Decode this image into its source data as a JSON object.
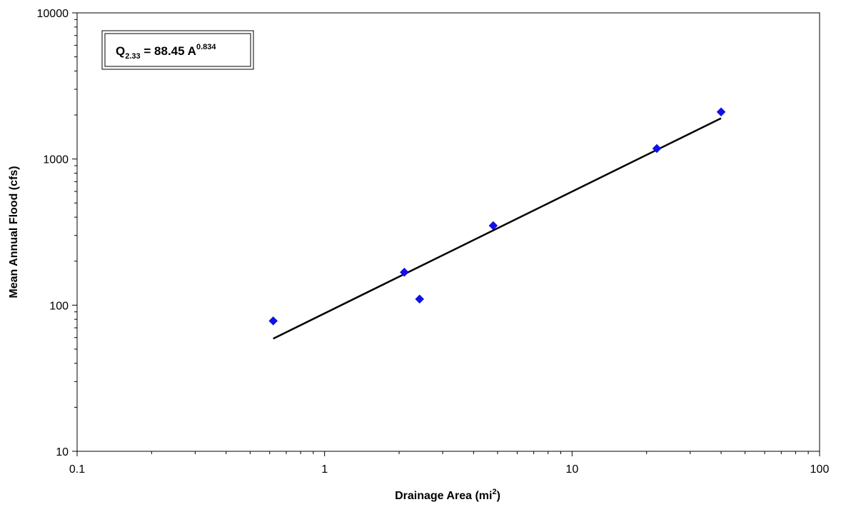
{
  "chart_data": {
    "type": "scatter",
    "xscale": "log",
    "yscale": "log",
    "xlim": [
      0.1,
      100
    ],
    "ylim": [
      10,
      10000
    ],
    "grid": false,
    "legend": "none",
    "title": "",
    "xlabel": {
      "main": "Drainage Area (mi",
      "sup": "2",
      "tail": ")"
    },
    "ylabel": "Mean Annual Flood (cfs)",
    "xticks": [
      {
        "value": 0.1,
        "label": "0.1"
      },
      {
        "value": 1,
        "label": "1"
      },
      {
        "value": 10,
        "label": "10"
      },
      {
        "value": 100,
        "label": "100"
      }
    ],
    "yticks": [
      {
        "value": 10,
        "label": "10"
      },
      {
        "value": 100,
        "label": "100"
      },
      {
        "value": 1000,
        "label": "1000"
      },
      {
        "value": 10000,
        "label": "10000"
      }
    ],
    "series": [
      {
        "type": "scatter",
        "marker": "diamond",
        "color": "#1010ee",
        "points": [
          {
            "x": 0.62,
            "y": 78
          },
          {
            "x": 2.1,
            "y": 168
          },
          {
            "x": 2.42,
            "y": 110
          },
          {
            "x": 4.8,
            "y": 350
          },
          {
            "x": 22,
            "y": 1180
          },
          {
            "x": 40,
            "y": 2100
          }
        ]
      },
      {
        "type": "line",
        "color": "#000000",
        "points": [
          {
            "x": 0.62,
            "y": 59
          },
          {
            "x": 40,
            "y": 1900
          }
        ]
      }
    ],
    "annotation": {
      "q": "Q",
      "sub": "2.33",
      "mid": " = 88.45 A",
      "sup": "0.834"
    }
  }
}
